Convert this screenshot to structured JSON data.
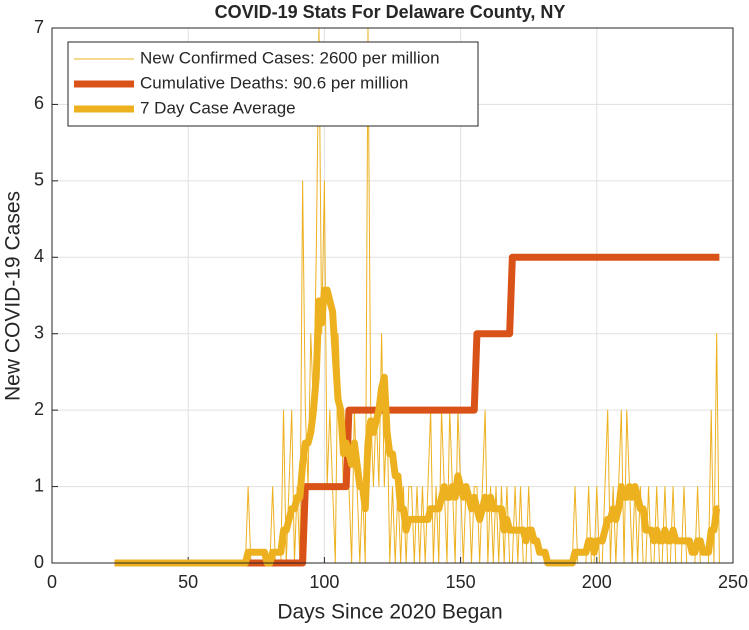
{
  "chart_data": {
    "type": "line",
    "title": "COVID-19 Stats For Delaware County, NY",
    "xlabel": "Days Since 2020 Began",
    "ylabel": "New COVID-19 Cases",
    "xlim": [
      0,
      250
    ],
    "xticks": [
      0,
      50,
      100,
      150,
      200,
      250
    ],
    "ylim": [
      0,
      7
    ],
    "yticks": [
      0,
      1,
      2,
      3,
      4,
      5,
      6,
      7
    ],
    "grid": true,
    "legend": "northwest",
    "x": [
      23,
      24,
      25,
      26,
      27,
      28,
      29,
      30,
      31,
      32,
      33,
      34,
      35,
      36,
      37,
      38,
      39,
      40,
      41,
      42,
      43,
      44,
      45,
      46,
      47,
      48,
      49,
      50,
      51,
      52,
      53,
      54,
      55,
      56,
      57,
      58,
      59,
      60,
      61,
      62,
      63,
      64,
      65,
      66,
      67,
      68,
      69,
      70,
      71,
      72,
      73,
      74,
      75,
      76,
      77,
      78,
      79,
      80,
      81,
      82,
      83,
      84,
      85,
      86,
      87,
      88,
      89,
      90,
      91,
      92,
      93,
      94,
      95,
      96,
      97,
      98,
      99,
      100,
      101,
      102,
      103,
      104,
      105,
      106,
      107,
      108,
      109,
      110,
      111,
      112,
      113,
      114,
      115,
      116,
      117,
      118,
      119,
      120,
      121,
      122,
      123,
      124,
      125,
      126,
      127,
      128,
      129,
      130,
      131,
      132,
      133,
      134,
      135,
      136,
      137,
      138,
      139,
      140,
      141,
      142,
      143,
      144,
      145,
      146,
      147,
      148,
      149,
      150,
      151,
      152,
      153,
      154,
      155,
      156,
      157,
      158,
      159,
      160,
      161,
      162,
      163,
      164,
      165,
      166,
      167,
      168,
      169,
      170,
      171,
      172,
      173,
      174,
      175,
      176,
      177,
      178,
      179,
      180,
      181,
      182,
      183,
      184,
      185,
      186,
      187,
      188,
      189,
      190,
      191,
      192,
      193,
      194,
      195,
      196,
      197,
      198,
      199,
      200,
      201,
      202,
      203,
      204,
      205,
      206,
      207,
      208,
      209,
      210,
      211,
      212,
      213,
      214,
      215,
      216,
      217,
      218,
      219,
      220,
      221,
      222,
      223,
      224,
      225,
      226,
      227,
      228,
      229,
      230,
      231,
      232,
      233,
      234,
      235,
      236,
      237,
      238,
      239,
      240,
      241,
      242,
      243,
      244,
      245
    ],
    "series": [
      {
        "name": "New Confirmed Cases: 2600 per million",
        "color": "#EDB120",
        "width": 1,
        "values": [
          0,
          0,
          0,
          0,
          0,
          0,
          0,
          0,
          0,
          0,
          0,
          0,
          0,
          0,
          0,
          0,
          0,
          0,
          0,
          0,
          0,
          0,
          0,
          0,
          0,
          0,
          0,
          0,
          0,
          0,
          0,
          0,
          0,
          0,
          0,
          0,
          0,
          0,
          0,
          0,
          0,
          0,
          0,
          0,
          0,
          0,
          0,
          0,
          0,
          1,
          0,
          0,
          0,
          0,
          0,
          0,
          0,
          0,
          1,
          0,
          0,
          0,
          2,
          0,
          1,
          2,
          0,
          1,
          0,
          5,
          2,
          1,
          3,
          2,
          4,
          7,
          3,
          5,
          1,
          2,
          1,
          0,
          3,
          2,
          1,
          2,
          1,
          0,
          2,
          1,
          0,
          1,
          0,
          7,
          2,
          1,
          2,
          1,
          3,
          1,
          2,
          0,
          1,
          0,
          1,
          0,
          1,
          0,
          1,
          1,
          0,
          1,
          0,
          1,
          0,
          1,
          2,
          0,
          1,
          0,
          2,
          1,
          0,
          2,
          1,
          0,
          2,
          1,
          0,
          1,
          1,
          0,
          1,
          1,
          0,
          1,
          2,
          0,
          1,
          0,
          1,
          0,
          1,
          0,
          1,
          0,
          0,
          1,
          0,
          1,
          0,
          0,
          1,
          0,
          0,
          0,
          0,
          0,
          0,
          0,
          0,
          0,
          0,
          0,
          0,
          0,
          0,
          0,
          0,
          1,
          0,
          0,
          0,
          0,
          1,
          0,
          0,
          1,
          0,
          0,
          1,
          2,
          0,
          1,
          0,
          1,
          2,
          0,
          2,
          1,
          0,
          1,
          0,
          1,
          0,
          0,
          1,
          0,
          0,
          1,
          0,
          0,
          1,
          0,
          0,
          1,
          0,
          0,
          0,
          1,
          0,
          0,
          0,
          0,
          1,
          0,
          0,
          0,
          0,
          2,
          0,
          3,
          0
        ]
      },
      {
        "name": "Cumulative Deaths: 90.6 per million",
        "color": "#D95319",
        "width": 7,
        "values": [
          0,
          0,
          0,
          0,
          0,
          0,
          0,
          0,
          0,
          0,
          0,
          0,
          0,
          0,
          0,
          0,
          0,
          0,
          0,
          0,
          0,
          0,
          0,
          0,
          0,
          0,
          0,
          0,
          0,
          0,
          0,
          0,
          0,
          0,
          0,
          0,
          0,
          0,
          0,
          0,
          0,
          0,
          0,
          0,
          0,
          0,
          0,
          0,
          0,
          0,
          0,
          0,
          0,
          0,
          0,
          0,
          0,
          0,
          0,
          0,
          0,
          0,
          0,
          0,
          0,
          0,
          0,
          0,
          0,
          0,
          1,
          1,
          1,
          1,
          1,
          1,
          1,
          1,
          1,
          1,
          1,
          1,
          1,
          1,
          1,
          1,
          2,
          2,
          2,
          2,
          2,
          2,
          2,
          2,
          2,
          2,
          2,
          2,
          2,
          2,
          2,
          2,
          2,
          2,
          2,
          2,
          2,
          2,
          2,
          2,
          2,
          2,
          2,
          2,
          2,
          2,
          2,
          2,
          2,
          2,
          2,
          2,
          2,
          2,
          2,
          2,
          2,
          2,
          2,
          2,
          2,
          2,
          2,
          3,
          3,
          3,
          3,
          3,
          3,
          3,
          3,
          3,
          3,
          3,
          3,
          3,
          4,
          4,
          4,
          4,
          4,
          4,
          4,
          4,
          4,
          4,
          4,
          4,
          4,
          4,
          4,
          4,
          4,
          4,
          4,
          4,
          4,
          4,
          4,
          4,
          4,
          4,
          4,
          4,
          4,
          4,
          4,
          4,
          4,
          4,
          4,
          4,
          4,
          4,
          4,
          4,
          4,
          4,
          4,
          4,
          4,
          4,
          4,
          4,
          4,
          4,
          4,
          4,
          4,
          4,
          4,
          4,
          4,
          4,
          4,
          4,
          4,
          4,
          4,
          4,
          4,
          4,
          4,
          4,
          4,
          4,
          4,
          4,
          4,
          4,
          4,
          4,
          4
        ]
      },
      {
        "name": "7 Day Case Average",
        "color": "#EDB120",
        "width": 7,
        "values": [
          0,
          0,
          0,
          0,
          0,
          0,
          0,
          0,
          0,
          0,
          0,
          0,
          0,
          0,
          0,
          0,
          0,
          0,
          0,
          0,
          0,
          0,
          0,
          0,
          0,
          0,
          0,
          0,
          0,
          0,
          0,
          0,
          0,
          0,
          0,
          0,
          0,
          0,
          0,
          0,
          0,
          0,
          0,
          0,
          0,
          0,
          0,
          0,
          0,
          0.14,
          0.14,
          0.14,
          0.14,
          0.14,
          0.14,
          0.14,
          0,
          0,
          0.14,
          0.14,
          0.14,
          0.14,
          0.43,
          0.43,
          0.57,
          0.71,
          0.71,
          0.86,
          0.86,
          1.29,
          1.57,
          1.57,
          1.71,
          2,
          2.43,
          3.43,
          3.14,
          3.57,
          3.57,
          3.43,
          3.29,
          2.71,
          2.14,
          2,
          1.43,
          1.57,
          1.43,
          1.29,
          1.57,
          1.29,
          1,
          1,
          0.71,
          1.57,
          1.86,
          1.71,
          1.86,
          2,
          2.29,
          2.43,
          1.71,
          1.43,
          1.43,
          1.14,
          1.14,
          0.71,
          0.71,
          0.43,
          0.57,
          0.57,
          0.57,
          0.57,
          0.57,
          0.57,
          0.57,
          0.57,
          0.71,
          0.71,
          0.71,
          0.71,
          0.86,
          1,
          0.86,
          0.86,
          1,
          0.86,
          1.14,
          1,
          0.86,
          1,
          0.86,
          0.71,
          0.86,
          0.71,
          0.57,
          0.71,
          0.86,
          0.71,
          0.86,
          0.71,
          0.71,
          0.71,
          0.71,
          0.43,
          0.57,
          0.43,
          0.43,
          0.43,
          0.43,
          0.43,
          0.43,
          0.29,
          0.43,
          0.43,
          0.29,
          0.29,
          0.14,
          0.14,
          0.14,
          0,
          0,
          0,
          0,
          0,
          0,
          0,
          0,
          0,
          0,
          0.14,
          0.14,
          0.14,
          0.14,
          0.14,
          0.29,
          0.29,
          0.14,
          0.29,
          0.29,
          0.29,
          0.43,
          0.57,
          0.57,
          0.71,
          0.57,
          0.71,
          1,
          0.86,
          0.86,
          1,
          0.86,
          1,
          0.86,
          0.71,
          0.71,
          0.43,
          0.43,
          0.43,
          0.29,
          0.43,
          0.29,
          0.29,
          0.43,
          0.29,
          0.29,
          0.43,
          0.29,
          0.29,
          0.29,
          0.29,
          0.29,
          0.29,
          0.14,
          0.14,
          0.29,
          0.29,
          0.14,
          0.14,
          0.14,
          0.43,
          0.43,
          0.71,
          0.71
        ]
      }
    ]
  }
}
